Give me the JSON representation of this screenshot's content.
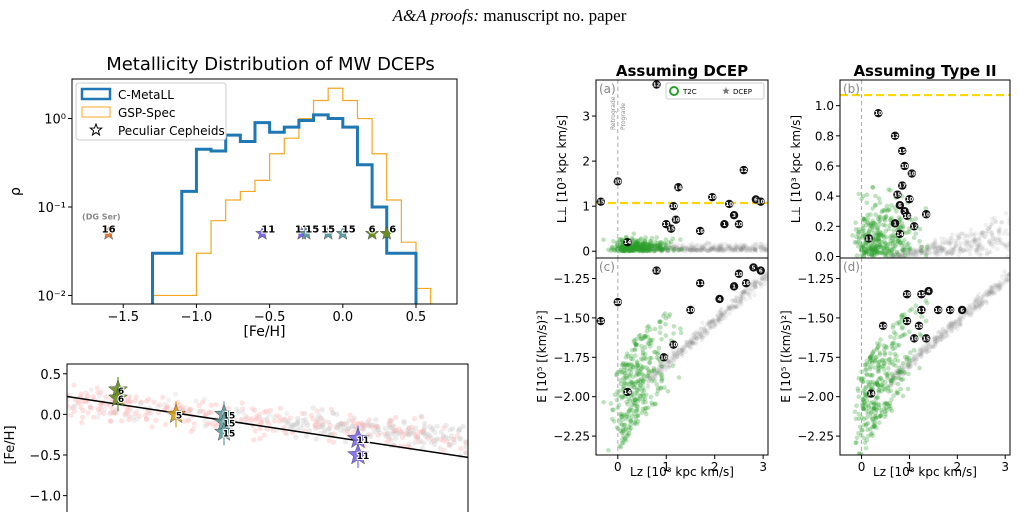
{
  "header": {
    "journal": "A&A proofs:",
    "manuscript": "manuscript no. paper"
  },
  "colors": {
    "cmetall": "#1f77b4",
    "gspspec": "#f5a623",
    "gold": "#ffd700",
    "green": "#2ca02c",
    "grey": "#999999"
  },
  "chart_data": [
    {
      "type": "bar",
      "title": "Metallicity Distribution of MW DCEPs",
      "xlabel": "[Fe/H]",
      "ylabel": "ρ",
      "xlim": [
        -1.85,
        0.78
      ],
      "ylim_log": [
        0.008,
        2.8
      ],
      "yscale": "log",
      "xticks": [
        "−1.5",
        "−1.0",
        "−0.5",
        "0.0",
        "0.5"
      ],
      "xtick_values": [
        -1.5,
        -1.0,
        -0.5,
        0.0,
        0.5
      ],
      "yticks": [
        "10⁻²",
        "10⁻¹",
        "10⁰"
      ],
      "ytick_values": [
        0.01,
        0.1,
        1.0
      ],
      "legend": [
        "C-MetaLL",
        "GSP-Spec",
        "Peculiar Cepheids"
      ],
      "legend_position": "top-left",
      "series": [
        {
          "name": "C-MetaLL",
          "edges": [
            -1.3,
            -1.1,
            -1.0,
            -0.9,
            -0.8,
            -0.7,
            -0.6,
            -0.5,
            -0.4,
            -0.3,
            -0.2,
            -0.1,
            0.0,
            0.1,
            0.2,
            0.3,
            0.4,
            0.5,
            0.6
          ],
          "values": [
            0.03,
            0.15,
            0.45,
            0.43,
            0.65,
            0.55,
            0.9,
            0.7,
            0.8,
            0.95,
            1.1,
            1.0,
            0.8,
            0.3,
            0.1,
            0.03,
            0.03,
            0.005
          ]
        },
        {
          "name": "GSP-Spec",
          "edges": [
            -1.3,
            -1.1,
            -1.0,
            -0.9,
            -0.8,
            -0.7,
            -0.6,
            -0.5,
            -0.4,
            -0.3,
            -0.2,
            -0.1,
            0.0,
            0.1,
            0.2,
            0.3,
            0.4,
            0.5,
            0.6
          ],
          "values": [
            0.01,
            0.01,
            0.03,
            0.07,
            0.12,
            0.15,
            0.2,
            0.4,
            0.6,
            1.0,
            1.6,
            2.2,
            1.6,
            1.0,
            0.4,
            0.12,
            0.04,
            0.012
          ]
        }
      ],
      "peculiar_cepheids": [
        {
          "label": "16",
          "x": -1.6,
          "y": 0.05,
          "color": "#e07b39"
        },
        {
          "label": "11",
          "x": -0.55,
          "y": 0.05,
          "color": "#7b68ee"
        },
        {
          "label": "11",
          "x": -0.28,
          "y": 0.05,
          "color": "#7b68ee"
        },
        {
          "label": "15",
          "x": -0.25,
          "y": 0.05,
          "color": "#5f9ea0"
        },
        {
          "label": "15",
          "x": -0.1,
          "y": 0.05,
          "color": "#5f9ea0"
        },
        {
          "label": "15",
          "x": 0.0,
          "y": 0.05,
          "color": "#5f9ea0"
        },
        {
          "label": "6",
          "x": 0.2,
          "y": 0.05,
          "color": "#6b8e23"
        },
        {
          "label": "6",
          "x": 0.3,
          "y": 0.05,
          "color": "#6b8e23"
        }
      ],
      "annotation": "(DG Ser)"
    },
    {
      "type": "scatter",
      "ylabel": "[Fe/H]",
      "yticks": [
        "0.5",
        "0.0",
        "−0.5",
        "−1.0"
      ],
      "ytick_values": [
        0.5,
        0.0,
        -0.5,
        -1.0
      ],
      "ylim": [
        -1.3,
        0.62
      ],
      "stars": [
        {
          "label": "6",
          "y": 0.3,
          "color": "#6b8e23"
        },
        {
          "label": "6",
          "y": 0.2,
          "color": "#6b8e23"
        },
        {
          "label": "5",
          "y": 0.0,
          "color": "#d4a017"
        },
        {
          "label": "15",
          "y": 0.0,
          "color": "#5f9ea0"
        },
        {
          "label": "15",
          "y": -0.1,
          "color": "#5f9ea0"
        },
        {
          "label": "15",
          "y": -0.22,
          "color": "#5f9ea0"
        },
        {
          "label": "11",
          "y": -0.3,
          "color": "#7b68ee"
        },
        {
          "label": "11",
          "y": -0.5,
          "color": "#7b68ee"
        }
      ]
    },
    {
      "type": "scatter",
      "title": "Assuming DCEP",
      "panel_labels": [
        "(a)",
        "(c)"
      ],
      "ylabel_top": "L⊥ [10³ kpc km/s]",
      "ylabel_bottom": "E [10⁵ [(km/s)²]",
      "xlabel": "Lz [10³ kpc km/s]",
      "xticks": [
        "0",
        "1",
        "2",
        "3"
      ],
      "xtick_values": [
        0,
        1,
        2,
        3
      ],
      "xlim": [
        -0.45,
        3.1
      ],
      "yticks_top": [
        "0",
        "1",
        "2",
        "3"
      ],
      "ytick_values_top": [
        0,
        1,
        2,
        3
      ],
      "ylim_top": [
        -0.15,
        3.8
      ],
      "yticks_bottom": [
        "−1.25",
        "−1.50",
        "−1.75",
        "−2.00",
        "−2.25"
      ],
      "ytick_values_bottom": [
        -1.25,
        -1.5,
        -1.75,
        -2.0,
        -2.25
      ],
      "ylim_bottom": [
        -2.37,
        -1.12
      ],
      "legend": [
        "T2C",
        "DCEP"
      ],
      "legend_position": "top-right",
      "annotation_lines": [
        "Retrograde",
        "Prograde"
      ],
      "threshold_y": 1.07,
      "labels_top": [
        {
          "t": "15",
          "x": -0.35,
          "y": 1.1
        },
        {
          "t": "10",
          "x": 0.0,
          "y": 1.55
        },
        {
          "t": "12",
          "x": 0.8,
          "y": 3.7
        },
        {
          "t": "14",
          "x": 1.25,
          "y": 1.42
        },
        {
          "t": "10",
          "x": 1.15,
          "y": 1.0
        },
        {
          "t": "10",
          "x": 1.2,
          "y": 0.7
        },
        {
          "t": "11",
          "x": 1.0,
          "y": 0.6
        },
        {
          "t": "15",
          "x": 1.1,
          "y": 0.5
        },
        {
          "t": "14",
          "x": 0.2,
          "y": 0.2
        },
        {
          "t": "10",
          "x": 1.95,
          "y": 1.2
        },
        {
          "t": "10",
          "x": 2.3,
          "y": 1.05
        },
        {
          "t": "12",
          "x": 2.6,
          "y": 1.8
        },
        {
          "t": "6",
          "x": 2.85,
          "y": 1.15
        },
        {
          "t": "10",
          "x": 2.95,
          "y": 1.1
        },
        {
          "t": "3",
          "x": 2.4,
          "y": 0.8
        },
        {
          "t": "1",
          "x": 2.2,
          "y": 0.6
        },
        {
          "t": "10",
          "x": 2.5,
          "y": 0.6
        },
        {
          "t": "16",
          "x": 1.7,
          "y": 0.45
        }
      ],
      "labels_bottom": [
        {
          "t": "15",
          "x": -0.35,
          "y": -1.52
        },
        {
          "t": "10",
          "x": 0.0,
          "y": -1.4
        },
        {
          "t": "12",
          "x": 0.8,
          "y": -1.2
        },
        {
          "t": "10",
          "x": 1.5,
          "y": -1.45
        },
        {
          "t": "11",
          "x": 1.7,
          "y": -1.28
        },
        {
          "t": "4",
          "x": 2.1,
          "y": -1.38
        },
        {
          "t": "10",
          "x": 2.5,
          "y": -1.22
        },
        {
          "t": "10",
          "x": 1.15,
          "y": -1.67
        },
        {
          "t": "10",
          "x": 0.95,
          "y": -1.75
        },
        {
          "t": "14",
          "x": 0.2,
          "y": -1.97
        },
        {
          "t": "5",
          "x": 2.8,
          "y": -1.18
        },
        {
          "t": "6",
          "x": 2.95,
          "y": -1.2
        },
        {
          "t": "1",
          "x": 2.4,
          "y": -1.3
        },
        {
          "t": "16",
          "x": 2.65,
          "y": -1.28
        }
      ]
    },
    {
      "type": "scatter",
      "title": "Assuming Type II",
      "panel_labels": [
        "(b)",
        "(d)"
      ],
      "ylabel_top": "L⊥ [10³ kpc km/s]",
      "ylabel_bottom": "E [10⁵ [(km/s)²]",
      "xlabel": "Lz [10³ kpc km/s]",
      "xticks": [
        "0",
        "1",
        "2",
        "3"
      ],
      "xtick_values": [
        0,
        1,
        2,
        3
      ],
      "xlim": [
        -0.45,
        3.1
      ],
      "yticks_top": [
        "0.0",
        "0.2",
        "0.4",
        "0.6",
        "0.8",
        "1.0"
      ],
      "ytick_values_top": [
        0.0,
        0.2,
        0.4,
        0.6,
        0.8,
        1.0
      ],
      "ylim_top": [
        -0.01,
        1.17
      ],
      "yticks_bottom": [
        "−1.25",
        "−1.50",
        "−1.75",
        "−2.00",
        "−2.25"
      ],
      "ytick_values_bottom": [
        -1.25,
        -1.5,
        -1.75,
        -2.0,
        -2.25
      ],
      "ylim_bottom": [
        -2.37,
        -1.12
      ],
      "threshold_y": 1.07,
      "labels_top": [
        {
          "t": "10",
          "x": 0.35,
          "y": 0.95
        },
        {
          "t": "12",
          "x": 0.7,
          "y": 0.8
        },
        {
          "t": "15",
          "x": 0.85,
          "y": 0.7
        },
        {
          "t": "10",
          "x": 0.9,
          "y": 0.6
        },
        {
          "t": "10",
          "x": 1.05,
          "y": 0.55
        },
        {
          "t": "17",
          "x": 0.85,
          "y": 0.47
        },
        {
          "t": "15",
          "x": 0.75,
          "y": 0.41
        },
        {
          "t": "10",
          "x": 1.0,
          "y": 0.38
        },
        {
          "t": "6",
          "x": 0.8,
          "y": 0.34
        },
        {
          "t": "3",
          "x": 0.9,
          "y": 0.3
        },
        {
          "t": "16",
          "x": 0.95,
          "y": 0.27
        },
        {
          "t": "10",
          "x": 1.35,
          "y": 0.28
        },
        {
          "t": "1",
          "x": 0.7,
          "y": 0.22
        },
        {
          "t": "12",
          "x": 1.1,
          "y": 0.2
        },
        {
          "t": "14",
          "x": 0.8,
          "y": 0.15
        },
        {
          "t": "11",
          "x": 0.15,
          "y": 0.12
        }
      ],
      "labels_bottom": [
        {
          "t": "10",
          "x": 0.95,
          "y": -1.35
        },
        {
          "t": "15",
          "x": 1.25,
          "y": -1.35
        },
        {
          "t": "4",
          "x": 1.4,
          "y": -1.33
        },
        {
          "t": "10",
          "x": 1.6,
          "y": -1.45
        },
        {
          "t": "11",
          "x": 1.25,
          "y": -1.45
        },
        {
          "t": "10",
          "x": 1.85,
          "y": -1.45
        },
        {
          "t": "6",
          "x": 2.1,
          "y": -1.45
        },
        {
          "t": "10",
          "x": 0.45,
          "y": -1.55
        },
        {
          "t": "12",
          "x": 0.95,
          "y": -1.52
        },
        {
          "t": "10",
          "x": 1.2,
          "y": -1.55
        },
        {
          "t": "10",
          "x": 1.1,
          "y": -1.63
        },
        {
          "t": "15",
          "x": 1.35,
          "y": -1.63
        },
        {
          "t": "14",
          "x": 0.2,
          "y": -1.98
        }
      ]
    }
  ]
}
